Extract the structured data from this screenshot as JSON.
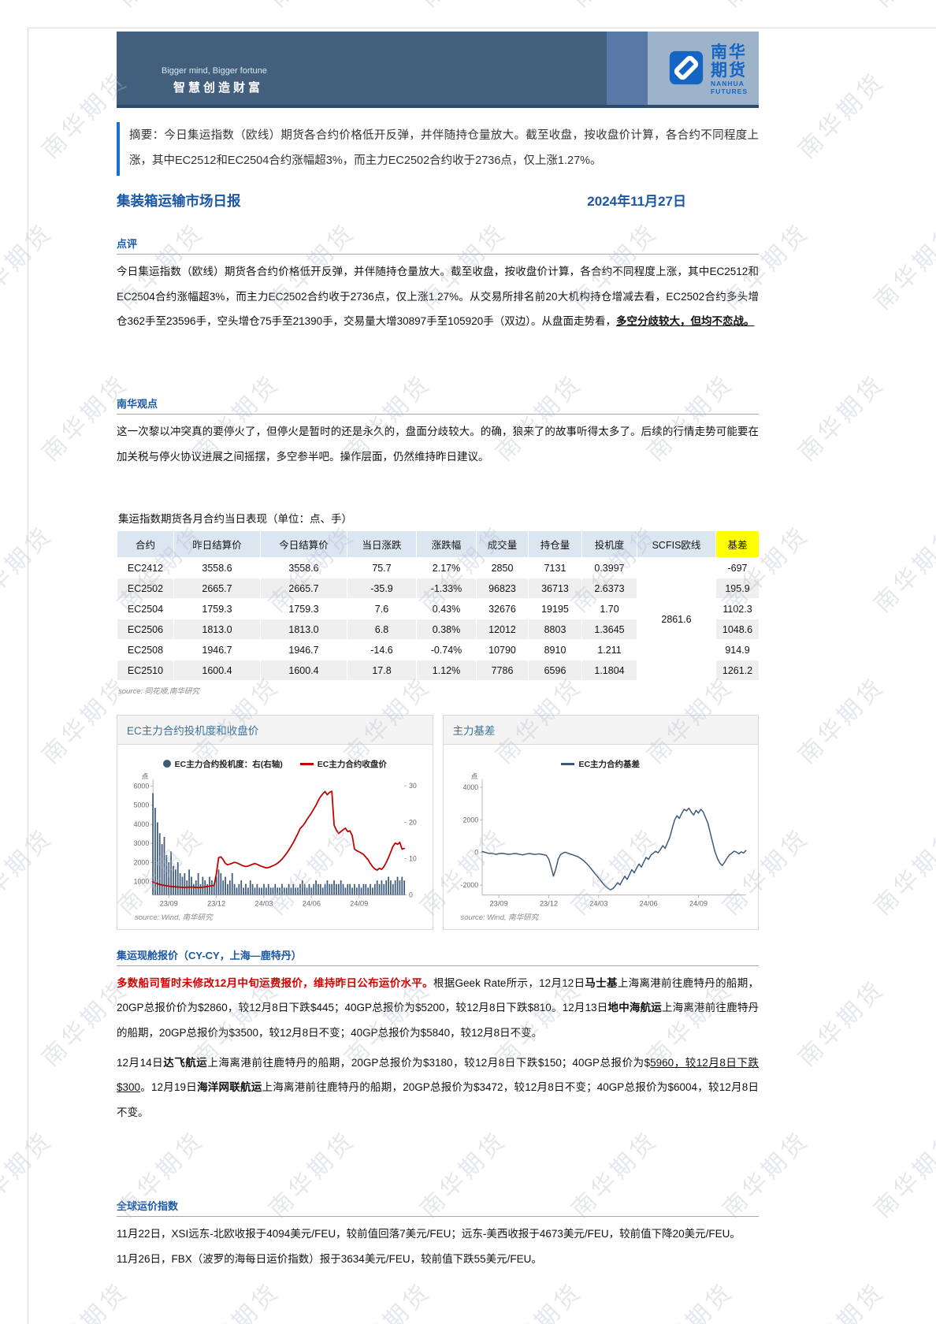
{
  "page": {
    "watermark": "南华期货"
  },
  "banner": {
    "slogan_en": "Bigger mind, Bigger fortune",
    "slogan_cn": "智慧创造财富",
    "logo_cn": "南华期货",
    "logo_en": "NANHUA FUTURES",
    "logo_color": "#1565c4"
  },
  "summary": {
    "text": "摘要：今日集运指数（欧线）期货各合约价格低开反弹，并伴随持仓量放大。截至收盘，按收盘价计算，各合约不同程度上涨，其中EC2512和EC2504合约涨幅超3%，而主力EC2502合约收于2736点，仅上涨1.27%。"
  },
  "report": {
    "title": "集装箱运输市场日报",
    "date": "2024年11月27日"
  },
  "sections": {
    "comment": {
      "heading": "点评",
      "segments": [
        {
          "t": "今日集运指数（欧线）期货各合约价格低开反弹，并伴随持仓量放大。截至收盘，按收盘价计算，各合约不同程度上涨，其中EC2512和EC2504合约涨幅超3%，而主力EC2502合约收于2736点，仅上涨1.27%。从交易所排名前20大机构持仓增减去看，EC2502合约多头增仓362手至23596手，空头增仓75手至21390手，交易量大增30897手至105920手（双边）。从盘面走势看，",
          "s": "n"
        },
        {
          "t": "多空分歧较大，但均不恋战。",
          "s": "bu"
        }
      ]
    },
    "viewpoint": {
      "heading": "南华观点",
      "text": "这一次黎以冲突真的要停火了，但停火是暂时的还是永久的，盘面分歧较大。的确，狼来了的故事听得太多了。后续的行情走势可能要在加关税与停火协议进展之间摇摆，多空参半吧。操作层面，仍然维持昨日建议。"
    },
    "quotes": {
      "heading": "集运现舱报价（CY-CY，上海—鹿特丹）",
      "para1": [
        {
          "t": "多数船司暂时未修改12月中旬运费报价，维持昨日公布运价水平。",
          "s": "rb"
        },
        {
          "t": "根据Geek Rate所示，12月12日",
          "s": "n"
        },
        {
          "t": "马士基",
          "s": "b"
        },
        {
          "t": "上海离港前往鹿特丹的船期，20GP总报价价为$2860，较12月8日下跌$445；40GP总报价为$5200，较12月8日下跌$810。12月13日",
          "s": "n"
        },
        {
          "t": "地中海航运",
          "s": "b"
        },
        {
          "t": "上海离港前往鹿特丹的船期，20GP总报价为$3500，较12月8日不变；40GP总报价为$5840，较12月8日不变。",
          "s": "n"
        }
      ],
      "para2": [
        {
          "t": "12月14日",
          "s": "n"
        },
        {
          "t": "达飞航运",
          "s": "b"
        },
        {
          "t": "上海离港前往鹿特丹的船期，20GP总报价为$3180，较12月8日下跌$150；40GP总报价为$",
          "s": "n"
        },
        {
          "t": "5960，较12月8日下跌$300",
          "s": "u"
        },
        {
          "t": "。12月19日",
          "s": "n"
        },
        {
          "t": "海洋网联航运",
          "s": "b"
        },
        {
          "t": "上海离港前往鹿特丹的船期，20GP总报价为$3472，较12月8日不变；40GP总报价为$6004，较12月8日不变。",
          "s": "n"
        }
      ]
    },
    "global_index": {
      "heading": "全球运价指数",
      "line1": "11月22日，XSI远东-北欧收报于4094美元/FEU，较前值回落7美元/FEU；远东-美西收报于4673美元/FEU，较前值下降20美元/FEU。",
      "line2": "11月26日，FBX（波罗的海每日运价指数）报于3634美元/FEU，较前值下跌55美元/FEU。"
    }
  },
  "table": {
    "title": "集运指数期货各月合约当日表现（单位：点、手）",
    "headers": [
      "合约",
      "昨日结算价",
      "今日结算价",
      "当日涨跌",
      "涨跌幅",
      "成交量",
      "持仓量",
      "投机度",
      "SCFIS欧线",
      "基差"
    ],
    "rows": [
      [
        "EC2412",
        "3558.6",
        "3558.6",
        "75.7",
        "2.17%",
        "2850",
        "7131",
        "0.3997",
        "-697"
      ],
      [
        "EC2502",
        "2665.7",
        "2665.7",
        "-35.9",
        "-1.33%",
        "96823",
        "36713",
        "2.6373",
        "195.9"
      ],
      [
        "EC2504",
        "1759.3",
        "1759.3",
        "7.6",
        "0.43%",
        "32676",
        "19195",
        "1.70",
        "1102.3"
      ],
      [
        "EC2506",
        "1813.0",
        "1813.0",
        "6.8",
        "0.38%",
        "12012",
        "8803",
        "1.3645",
        "1048.6"
      ],
      [
        "EC2508",
        "1946.7",
        "1946.7",
        "-14.6",
        "-0.74%",
        "10790",
        "8910",
        "1.211",
        "914.9"
      ],
      [
        "EC2510",
        "1600.4",
        "1600.4",
        "17.8",
        "1.12%",
        "7786",
        "6596",
        "1.1804",
        "1261.2"
      ]
    ],
    "scfis_value": "2861.6",
    "source": "source:  同花顺,南华研究"
  },
  "chart_data": [
    {
      "type": "bar",
      "title": "EC主力合约投机度和收盘价",
      "unit_label": "点",
      "legend": [
        {
          "name": "EC主力合约投机度：右(右轴)",
          "marker": "circle",
          "color": "#3d5a78"
        },
        {
          "name": "EC主力合约收盘价",
          "marker": "line",
          "color": "#c00000"
        }
      ],
      "x_tick_labels": [
        "23/09",
        "23/12",
        "24/03",
        "24/06",
        "24/09"
      ],
      "x_tick_indices": [
        7,
        28,
        49,
        70,
        91
      ],
      "left_axis": {
        "ylim": [
          300,
          6200
        ],
        "ticks": [
          1000,
          2000,
          3000,
          4000,
          5000,
          6000
        ]
      },
      "right_axis": {
        "ylim": [
          0,
          31
        ],
        "ticks": [
          0,
          10,
          20,
          30
        ]
      },
      "series": [
        {
          "name": "EC主力合约投机度：右(右轴)",
          "type": "bar",
          "axis": "right",
          "color": "#3f5b7d",
          "values": [
            28,
            24,
            20,
            17,
            14,
            16,
            11,
            9,
            12,
            8,
            7,
            9,
            6,
            5,
            6,
            4,
            7,
            5,
            3,
            4,
            6,
            3,
            5,
            4,
            3,
            5,
            4,
            3,
            5,
            7,
            6,
            4,
            5,
            3,
            4,
            6,
            3,
            2,
            3,
            4,
            2,
            3,
            2,
            4,
            3,
            2,
            3,
            2,
            2,
            3,
            2,
            3,
            2,
            2,
            3,
            2,
            2,
            3,
            2,
            2,
            3,
            2,
            3,
            2,
            2,
            3,
            4,
            3,
            2,
            3,
            2,
            3,
            4,
            3,
            3,
            2,
            3,
            4,
            3,
            3,
            4,
            3,
            3,
            4,
            3,
            2,
            3,
            3,
            2,
            3,
            2,
            3,
            2,
            3,
            3,
            2,
            3,
            2,
            3,
            4,
            3,
            4,
            3,
            4,
            5,
            4,
            3,
            4,
            5,
            4,
            5,
            4
          ]
        },
        {
          "name": "EC主力合约收盘价",
          "type": "line",
          "axis": "left",
          "color": "#c00000",
          "values": [
            980,
            930,
            890,
            850,
            820,
            800,
            780,
            760,
            745,
            735,
            725,
            715,
            705,
            700,
            695,
            700,
            710,
            715,
            705,
            695,
            690,
            695,
            705,
            720,
            740,
            760,
            780,
            800,
            1400,
            2250,
            2300,
            2150,
            1950,
            1880,
            1920,
            1960,
            2010,
            1980,
            1930,
            1870,
            1820,
            1790,
            1810,
            1860,
            1910,
            1950,
            1900,
            1850,
            1800,
            1760,
            1720,
            1740,
            1780,
            1830,
            1890,
            1960,
            2060,
            2180,
            2320,
            2480,
            2650,
            2850,
            3050,
            3280,
            3520,
            3780,
            3900,
            4050,
            4250,
            4420,
            4600,
            4800,
            5000,
            5250,
            5450,
            5600,
            5720,
            5550,
            5680,
            5730,
            3950,
            3700,
            3520,
            3620,
            3720,
            3800,
            3620,
            3660,
            3400,
            2700,
            2620,
            2560,
            2500,
            2420,
            2280,
            2150,
            1950,
            1780,
            1660,
            1600,
            1700,
            1640,
            1780,
            2000,
            2250,
            2550,
            2850,
            3020,
            2950,
            3060,
            2700,
            2736
          ]
        }
      ],
      "source": "source:  Wind, 南华研究"
    },
    {
      "type": "line",
      "title": "主力基差",
      "unit_label": "点",
      "legend": [
        {
          "name": "EC主力合约基差",
          "marker": "line",
          "color": "#3b5878"
        }
      ],
      "x_tick_labels": [
        "23/09",
        "23/12",
        "24/03",
        "24/06",
        "24/09"
      ],
      "x_tick_indices": [
        7,
        28,
        49,
        70,
        91
      ],
      "left_axis": {
        "ylim": [
          -2600,
          4300
        ],
        "ticks": [
          -2000,
          0,
          2000,
          4000
        ]
      },
      "series": [
        {
          "name": "EC主力合约基差",
          "type": "line",
          "axis": "left",
          "color": "#3b5878",
          "values": [
            60,
            20,
            -20,
            -60,
            -40,
            -90,
            -110,
            -70,
            -50,
            -60,
            -90,
            -110,
            -95,
            -75,
            -60,
            -85,
            -120,
            -145,
            -105,
            -80,
            -60,
            -90,
            -120,
            -100,
            -80,
            -110,
            -140,
            -180,
            -400,
            -900,
            -1450,
            -1000,
            -400,
            -120,
            -30,
            20,
            -40,
            -90,
            -140,
            -190,
            -240,
            -320,
            -420,
            -540,
            -680,
            -840,
            -1020,
            -1200,
            -1380,
            -1560,
            -1740,
            -1920,
            -2080,
            -2200,
            -2290,
            -2210,
            -2050,
            -1850,
            -1980,
            -1700,
            -1450,
            -1650,
            -1350,
            -1050,
            -1250,
            -950,
            -700,
            -900,
            -580,
            -300,
            -420,
            -150,
            -50,
            80,
            -20,
            180,
            420,
            250,
            600,
            950,
            1500,
            2000,
            2250,
            2100,
            2400,
            2650,
            2550,
            2720,
            2480,
            2300,
            2580,
            2420,
            2650,
            2500,
            2150,
            1800,
            1200,
            600,
            50,
            -350,
            -650,
            -800,
            -600,
            -350,
            -150,
            -50,
            80,
            30,
            -80,
            40,
            -30,
            120
          ]
        }
      ],
      "source": "source:  Wind, 南华研究"
    }
  ]
}
